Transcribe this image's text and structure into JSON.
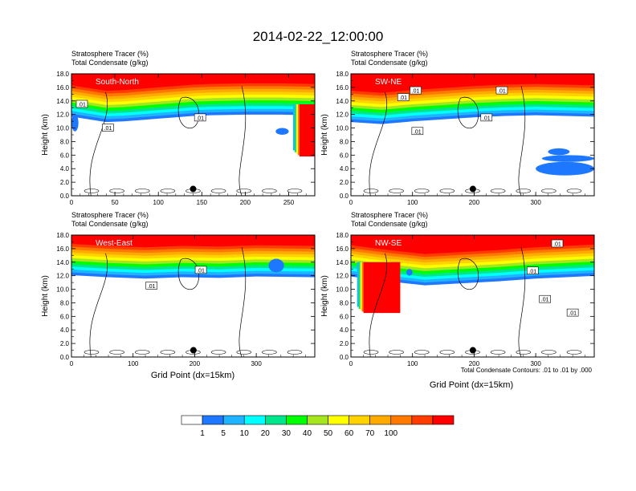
{
  "title": "2014-02-22_12:00:00",
  "panel_header": {
    "line1": "Stratosphere Tracer   (%)",
    "line2": "Total Condensate   (g/kg)"
  },
  "ylabel": "Height (km)",
  "xlabel": "Grid Point (dx=15km)",
  "contour_note": "Total Condensate Contours: .01 to .01 by .000",
  "contour_label": ".01",
  "chart_data": [
    {
      "type": "heatmap",
      "panel": "South-North",
      "ylabel": "Height (km)",
      "ylim": [
        0,
        18
      ],
      "xlim": [
        0,
        280
      ],
      "xticks": [
        0,
        50,
        100,
        150,
        200,
        250
      ],
      "yticks": [
        0.0,
        2.0,
        4.0,
        6.0,
        8.0,
        10.0,
        12.0,
        14.0,
        16.0,
        18.0
      ],
      "tracer_top_km": [
        [
          0,
          16.3
        ],
        [
          20,
          15.9
        ],
        [
          40,
          15.5
        ],
        [
          60,
          15.6
        ],
        [
          80,
          15.8
        ],
        [
          100,
          16.0
        ],
        [
          120,
          16.2
        ],
        [
          140,
          16.4
        ],
        [
          160,
          16.5
        ],
        [
          200,
          16.6
        ],
        [
          240,
          16.6
        ],
        [
          280,
          16.5
        ]
      ],
      "intrusion": {
        "x": [
          255,
          280
        ],
        "bottom_km": 5.8,
        "top_km": 13.5
      },
      "blue_patches": [
        {
          "x": [
            0,
            8
          ],
          "y_km": [
            9.5,
            12.0
          ]
        },
        {
          "x": [
            235,
            250
          ],
          "y_km": [
            9.0,
            10.0
          ]
        }
      ],
      "markers": [
        {
          "x": 140,
          "y_km": 1.0
        }
      ],
      "contour_labels": [
        {
          "x": 12,
          "y_km": 13.5
        },
        {
          "x": 42,
          "y_km": 10.0
        },
        {
          "x": 148,
          "y_km": 11.5
        }
      ]
    },
    {
      "type": "heatmap",
      "panel": "SW-NE",
      "ylabel": "Height (km)",
      "ylim": [
        0,
        18
      ],
      "xlim": [
        0,
        395
      ],
      "xticks": [
        0,
        100,
        200,
        300
      ],
      "yticks": [
        0.0,
        2.0,
        4.0,
        6.0,
        8.0,
        10.0,
        12.0,
        14.0,
        16.0,
        18.0
      ],
      "tracer_top_km": [
        [
          0,
          15.5
        ],
        [
          50,
          15.2
        ],
        [
          100,
          15.6
        ],
        [
          150,
          15.9
        ],
        [
          200,
          16.2
        ],
        [
          250,
          16.4
        ],
        [
          300,
          16.5
        ],
        [
          395,
          16.3
        ]
      ],
      "blue_patches": [
        {
          "x": [
            320,
            355
          ],
          "y_km": [
            6.0,
            7.0
          ]
        },
        {
          "x": [
            310,
            395
          ],
          "y_km": [
            5.0,
            6.0
          ]
        },
        {
          "x": [
            300,
            395
          ],
          "y_km": [
            3.0,
            5.0
          ]
        }
      ],
      "markers": [
        {
          "x": 198,
          "y_km": 1.0
        }
      ],
      "contour_labels": [
        {
          "x": 85,
          "y_km": 14.5
        },
        {
          "x": 105,
          "y_km": 15.5
        },
        {
          "x": 108,
          "y_km": 9.5
        },
        {
          "x": 220,
          "y_km": 11.5
        },
        {
          "x": 245,
          "y_km": 15.5
        }
      ]
    },
    {
      "type": "heatmap",
      "panel": "West-East",
      "ylabel": "Height (km)",
      "ylim": [
        0,
        18
      ],
      "xlim": [
        0,
        395
      ],
      "xticks": [
        0,
        100,
        200,
        300
      ],
      "yticks": [
        0.0,
        2.0,
        4.0,
        6.0,
        8.0,
        10.0,
        12.0,
        14.0,
        16.0,
        18.0
      ],
      "tracer_top_km": [
        [
          0,
          16.7
        ],
        [
          60,
          16.4
        ],
        [
          120,
          16.2
        ],
        [
          180,
          16.4
        ],
        [
          240,
          16.3
        ],
        [
          300,
          16.5
        ],
        [
          395,
          16.4
        ]
      ],
      "blue_patches": [
        {
          "x": [
            320,
            345
          ],
          "y_km": [
            12.5,
            14.5
          ]
        }
      ],
      "markers": [
        {
          "x": 198,
          "y_km": 1.0
        }
      ],
      "contour_labels": [
        {
          "x": 130,
          "y_km": 10.5
        },
        {
          "x": 210,
          "y_km": 12.8
        }
      ]
    },
    {
      "type": "heatmap",
      "panel": "NW-SE",
      "ylabel": "Height (km)",
      "ylim": [
        0,
        18
      ],
      "xlim": [
        0,
        395
      ],
      "xticks": [
        0,
        100,
        200,
        300
      ],
      "yticks": [
        0.0,
        2.0,
        4.0,
        6.0,
        8.0,
        10.0,
        12.0,
        14.0,
        16.0,
        18.0
      ],
      "tracer_top_km": [
        [
          0,
          16.5
        ],
        [
          60,
          15.8
        ],
        [
          120,
          15.2
        ],
        [
          180,
          15.5
        ],
        [
          240,
          15.8
        ],
        [
          300,
          16.2
        ],
        [
          395,
          16.6
        ]
      ],
      "intrusion": {
        "x": [
          10,
          80
        ],
        "bottom_km": 6.5,
        "top_km": 14.0
      },
      "blue_patches": [
        {
          "x": [
            90,
            100
          ],
          "y_km": [
            12.0,
            13.0
          ]
        }
      ],
      "markers": [
        {
          "x": 198,
          "y_km": 1.0
        }
      ],
      "contour_labels": [
        {
          "x": 295,
          "y_km": 12.7
        },
        {
          "x": 335,
          "y_km": 16.7
        },
        {
          "x": 315,
          "y_km": 8.5
        },
        {
          "x": 360,
          "y_km": 6.5
        }
      ]
    }
  ],
  "colorbar": {
    "colors": [
      "#ffffff",
      "#1e78ff",
      "#1eb4ff",
      "#00ffff",
      "#00e68c",
      "#00ff00",
      "#a5e61e",
      "#ffff00",
      "#ffd200",
      "#ffaa00",
      "#ff7800",
      "#ff3c00",
      "#ff0000"
    ],
    "labels": [
      "1",
      "5",
      "10",
      "20",
      "30",
      "40",
      "50",
      "60",
      "70",
      "100"
    ]
  }
}
